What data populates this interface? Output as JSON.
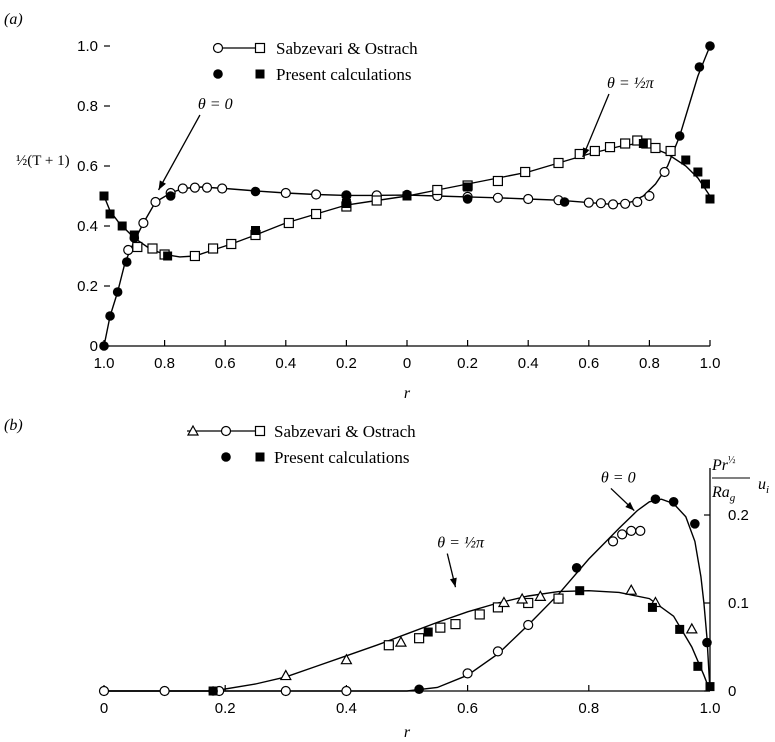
{
  "figure": {
    "panel_a_label": "(a)",
    "panel_b_label": "(b)",
    "colors": {
      "ink": "#000000",
      "paper": "#ffffff"
    }
  },
  "chart_data": [
    {
      "type": "line",
      "panel": "(a)",
      "title": "",
      "xlabel": "r",
      "ylabel": "½(T + 1)",
      "xlim": [
        -1,
        1
      ],
      "ylim": [
        0,
        1
      ],
      "x_ticks": [
        -1.0,
        -0.8,
        -0.6,
        -0.4,
        -0.2,
        0,
        0.2,
        0.4,
        0.6,
        0.8,
        1.0
      ],
      "x_tick_labels": [
        "1.0",
        "0.8",
        "0.6",
        "0.4",
        "0.2",
        "0",
        "0.2",
        "0.4",
        "0.6",
        "0.8",
        "1.0"
      ],
      "y_ticks": [
        0,
        0.2,
        0.4,
        0.6,
        0.8,
        1.0
      ],
      "y_tick_labels": [
        "0",
        "0.2",
        "0.4",
        "0.6",
        "0.8",
        "1.0"
      ],
      "grid": false,
      "legend": {
        "placement": "top-center",
        "entries": [
          "Sabzevari & Ostrach",
          "Present calculations"
        ]
      },
      "annotations": [
        {
          "text": "θ = 0",
          "x": -0.69,
          "y": 0.79,
          "arrow_to": [
            -0.82,
            0.52
          ]
        },
        {
          "text": "θ = ½π",
          "x": 0.66,
          "y": 0.86,
          "arrow_to": [
            0.58,
            0.63
          ]
        }
      ],
      "series": [
        {
          "name": "θ = 0",
          "curve": [
            [
              -1.0,
              0.0
            ],
            [
              -0.98,
              0.1
            ],
            [
              -0.955,
              0.18
            ],
            [
              -0.93,
              0.28
            ],
            [
              -0.9,
              0.35
            ],
            [
              -0.87,
              0.41
            ],
            [
              -0.83,
              0.48
            ],
            [
              -0.78,
              0.51
            ],
            [
              -0.74,
              0.525
            ],
            [
              -0.68,
              0.53
            ],
            [
              -0.6,
              0.525
            ],
            [
              -0.5,
              0.517
            ],
            [
              -0.4,
              0.51
            ],
            [
              -0.3,
              0.505
            ],
            [
              -0.2,
              0.502
            ],
            [
              -0.1,
              0.502
            ],
            [
              0.0,
              0.503
            ],
            [
              0.1,
              0.5
            ],
            [
              0.2,
              0.497
            ],
            [
              0.3,
              0.494
            ],
            [
              0.4,
              0.49
            ],
            [
              0.5,
              0.486
            ],
            [
              0.6,
              0.478
            ],
            [
              0.68,
              0.472
            ],
            [
              0.74,
              0.48
            ],
            [
              0.78,
              0.5
            ],
            [
              0.82,
              0.54
            ],
            [
              0.86,
              0.6
            ],
            [
              0.9,
              0.7
            ],
            [
              0.93,
              0.8
            ],
            [
              0.96,
              0.9
            ],
            [
              0.98,
              0.95
            ],
            [
              1.0,
              1.0
            ]
          ],
          "sabzevari": [
            [
              -0.92,
              0.32
            ],
            [
              -0.87,
              0.41
            ],
            [
              -0.83,
              0.48
            ],
            [
              -0.78,
              0.51
            ],
            [
              -0.74,
              0.525
            ],
            [
              -0.7,
              0.528
            ],
            [
              -0.66,
              0.528
            ],
            [
              -0.61,
              0.525
            ],
            [
              -0.4,
              0.51
            ],
            [
              -0.3,
              0.505
            ],
            [
              -0.2,
              0.502
            ],
            [
              -0.1,
              0.502
            ],
            [
              0.1,
              0.5
            ],
            [
              0.2,
              0.497
            ],
            [
              0.3,
              0.494
            ],
            [
              0.4,
              0.49
            ],
            [
              0.5,
              0.486
            ],
            [
              0.6,
              0.478
            ],
            [
              0.64,
              0.476
            ],
            [
              0.68,
              0.472
            ],
            [
              0.72,
              0.474
            ],
            [
              0.76,
              0.48
            ],
            [
              0.8,
              0.5
            ],
            [
              0.85,
              0.58
            ]
          ],
          "present": [
            [
              -1.0,
              0.0
            ],
            [
              -0.98,
              0.1
            ],
            [
              -0.955,
              0.18
            ],
            [
              -0.925,
              0.28
            ],
            [
              -0.9,
              0.36
            ],
            [
              -0.78,
              0.5
            ],
            [
              -0.5,
              0.515
            ],
            [
              -0.2,
              0.5
            ],
            [
              0.0,
              0.505
            ],
            [
              0.2,
              0.49
            ],
            [
              0.52,
              0.48
            ],
            [
              0.9,
              0.7
            ],
            [
              0.965,
              0.93
            ],
            [
              1.0,
              1.0
            ]
          ]
        },
        {
          "name": "θ = ½π",
          "curve": [
            [
              -1.0,
              0.5
            ],
            [
              -0.98,
              0.45
            ],
            [
              -0.95,
              0.41
            ],
            [
              -0.9,
              0.36
            ],
            [
              -0.85,
              0.325
            ],
            [
              -0.8,
              0.305
            ],
            [
              -0.75,
              0.297
            ],
            [
              -0.7,
              0.3
            ],
            [
              -0.64,
              0.32
            ],
            [
              -0.58,
              0.34
            ],
            [
              -0.5,
              0.37
            ],
            [
              -0.4,
              0.41
            ],
            [
              -0.3,
              0.44
            ],
            [
              -0.2,
              0.47
            ],
            [
              -0.1,
              0.485
            ],
            [
              0.0,
              0.5
            ],
            [
              0.1,
              0.52
            ],
            [
              0.2,
              0.54
            ],
            [
              0.3,
              0.56
            ],
            [
              0.4,
              0.58
            ],
            [
              0.5,
              0.61
            ],
            [
              0.6,
              0.64
            ],
            [
              0.7,
              0.665
            ],
            [
              0.76,
              0.675
            ],
            [
              0.8,
              0.665
            ],
            [
              0.86,
              0.64
            ],
            [
              0.92,
              0.6
            ],
            [
              0.96,
              0.56
            ],
            [
              1.0,
              0.5
            ]
          ],
          "sabzevari": [
            [
              -0.89,
              0.33
            ],
            [
              -0.84,
              0.325
            ],
            [
              -0.8,
              0.305
            ],
            [
              -0.7,
              0.3
            ],
            [
              -0.64,
              0.325
            ],
            [
              -0.58,
              0.34
            ],
            [
              -0.5,
              0.37
            ],
            [
              -0.39,
              0.41
            ],
            [
              -0.3,
              0.44
            ],
            [
              -0.2,
              0.465
            ],
            [
              -0.1,
              0.485
            ],
            [
              0.1,
              0.52
            ],
            [
              0.2,
              0.535
            ],
            [
              0.3,
              0.55
            ],
            [
              0.39,
              0.58
            ],
            [
              0.5,
              0.61
            ],
            [
              0.57,
              0.64
            ],
            [
              0.62,
              0.65
            ],
            [
              0.67,
              0.663
            ],
            [
              0.72,
              0.675
            ],
            [
              0.76,
              0.685
            ],
            [
              0.79,
              0.675
            ],
            [
              0.82,
              0.66
            ],
            [
              0.87,
              0.65
            ]
          ],
          "present": [
            [
              -1.0,
              0.5
            ],
            [
              -0.98,
              0.44
            ],
            [
              -0.94,
              0.4
            ],
            [
              -0.9,
              0.37
            ],
            [
              -0.79,
              0.3
            ],
            [
              -0.5,
              0.385
            ],
            [
              -0.2,
              0.475
            ],
            [
              0.0,
              0.5
            ],
            [
              0.2,
              0.53
            ],
            [
              0.78,
              0.675
            ],
            [
              0.92,
              0.62
            ],
            [
              0.96,
              0.58
            ],
            [
              0.985,
              0.54
            ],
            [
              1.0,
              0.49
            ]
          ]
        }
      ]
    },
    {
      "type": "line",
      "panel": "(b)",
      "title": "",
      "xlabel": "r",
      "ylabel": "Pr½/Ra_g u_i",
      "xlim": [
        0,
        1
      ],
      "ylim": [
        0,
        0.25
      ],
      "x_ticks": [
        0,
        0.2,
        0.4,
        0.6,
        0.8,
        1.0
      ],
      "x_tick_labels": [
        "0",
        "0.2",
        "0.4",
        "0.6",
        "0.8",
        "1.0"
      ],
      "y_ticks": [
        0,
        0.1,
        0.2
      ],
      "y_tick_labels": [
        "0",
        "0.1",
        "0.2"
      ],
      "grid": false,
      "legend": {
        "placement": "top-center",
        "entries": [
          "Sabzevari & Ostrach",
          "Present calculations"
        ]
      },
      "annotations": [
        {
          "text": "θ = 0",
          "x": 0.82,
          "y": 0.237,
          "arrow_to": [
            0.875,
            0.205
          ]
        },
        {
          "text": "θ = ½π",
          "x": 0.55,
          "y": 0.163,
          "arrow_to": [
            0.58,
            0.118
          ]
        }
      ],
      "series": [
        {
          "name": "θ = 0",
          "curve": [
            [
              0.0,
              0.0
            ],
            [
              0.5,
              0.0
            ],
            [
              0.55,
              0.004
            ],
            [
              0.6,
              0.018
            ],
            [
              0.65,
              0.042
            ],
            [
              0.7,
              0.075
            ],
            [
              0.75,
              0.11
            ],
            [
              0.8,
              0.15
            ],
            [
              0.85,
              0.185
            ],
            [
              0.88,
              0.205
            ],
            [
              0.9,
              0.215
            ],
            [
              0.92,
              0.218
            ],
            [
              0.94,
              0.213
            ],
            [
              0.96,
              0.198
            ],
            [
              0.975,
              0.17
            ],
            [
              0.985,
              0.13
            ],
            [
              0.99,
              0.1
            ],
            [
              0.995,
              0.06
            ],
            [
              1.0,
              0.0
            ]
          ],
          "sabzevari": [
            [
              0.0,
              0.0
            ],
            [
              0.1,
              0.0
            ],
            [
              0.19,
              0.0
            ],
            [
              0.3,
              0.0
            ],
            [
              0.4,
              0.0
            ],
            [
              0.6,
              0.02
            ],
            [
              0.65,
              0.045
            ],
            [
              0.7,
              0.075
            ],
            [
              0.75,
              0.105
            ],
            [
              0.84,
              0.17
            ],
            [
              0.855,
              0.178
            ],
            [
              0.87,
              0.182
            ],
            [
              0.885,
              0.182
            ]
          ],
          "present": [
            [
              0.18,
              0.0
            ],
            [
              0.52,
              0.002
            ],
            [
              0.78,
              0.14
            ],
            [
              0.91,
              0.218
            ],
            [
              0.94,
              0.215
            ],
            [
              0.975,
              0.19
            ],
            [
              0.995,
              0.055
            ]
          ]
        },
        {
          "name": "θ = ½π",
          "curve": [
            [
              0.0,
              0.0
            ],
            [
              0.18,
              0.0
            ],
            [
              0.25,
              0.008
            ],
            [
              0.3,
              0.016
            ],
            [
              0.35,
              0.028
            ],
            [
              0.4,
              0.04
            ],
            [
              0.45,
              0.052
            ],
            [
              0.5,
              0.065
            ],
            [
              0.55,
              0.078
            ],
            [
              0.6,
              0.09
            ],
            [
              0.65,
              0.1
            ],
            [
              0.7,
              0.108
            ],
            [
              0.75,
              0.113
            ],
            [
              0.8,
              0.114
            ],
            [
              0.85,
              0.112
            ],
            [
              0.9,
              0.105
            ],
            [
              0.94,
              0.085
            ],
            [
              0.97,
              0.05
            ],
            [
              0.99,
              0.018
            ],
            [
              1.0,
              0.0
            ]
          ],
          "sabzevari_triangles": [
            [
              0.3,
              0.017
            ],
            [
              0.4,
              0.035
            ],
            [
              0.49,
              0.055
            ],
            [
              0.66,
              0.1
            ],
            [
              0.69,
              0.104
            ],
            [
              0.72,
              0.107
            ],
            [
              0.87,
              0.114
            ],
            [
              0.91,
              0.1
            ],
            [
              0.97,
              0.07
            ]
          ],
          "sabzevari": [
            [
              0.47,
              0.052
            ],
            [
              0.52,
              0.06
            ],
            [
              0.555,
              0.072
            ],
            [
              0.58,
              0.076
            ],
            [
              0.62,
              0.087
            ],
            [
              0.65,
              0.095
            ],
            [
              0.7,
              0.1
            ],
            [
              0.75,
              0.105
            ]
          ],
          "present": [
            [
              0.18,
              0.0
            ],
            [
              0.535,
              0.067
            ],
            [
              0.785,
              0.114
            ],
            [
              0.905,
              0.095
            ],
            [
              0.95,
              0.07
            ],
            [
              0.98,
              0.028
            ],
            [
              1.0,
              0.005
            ]
          ]
        }
      ]
    }
  ]
}
